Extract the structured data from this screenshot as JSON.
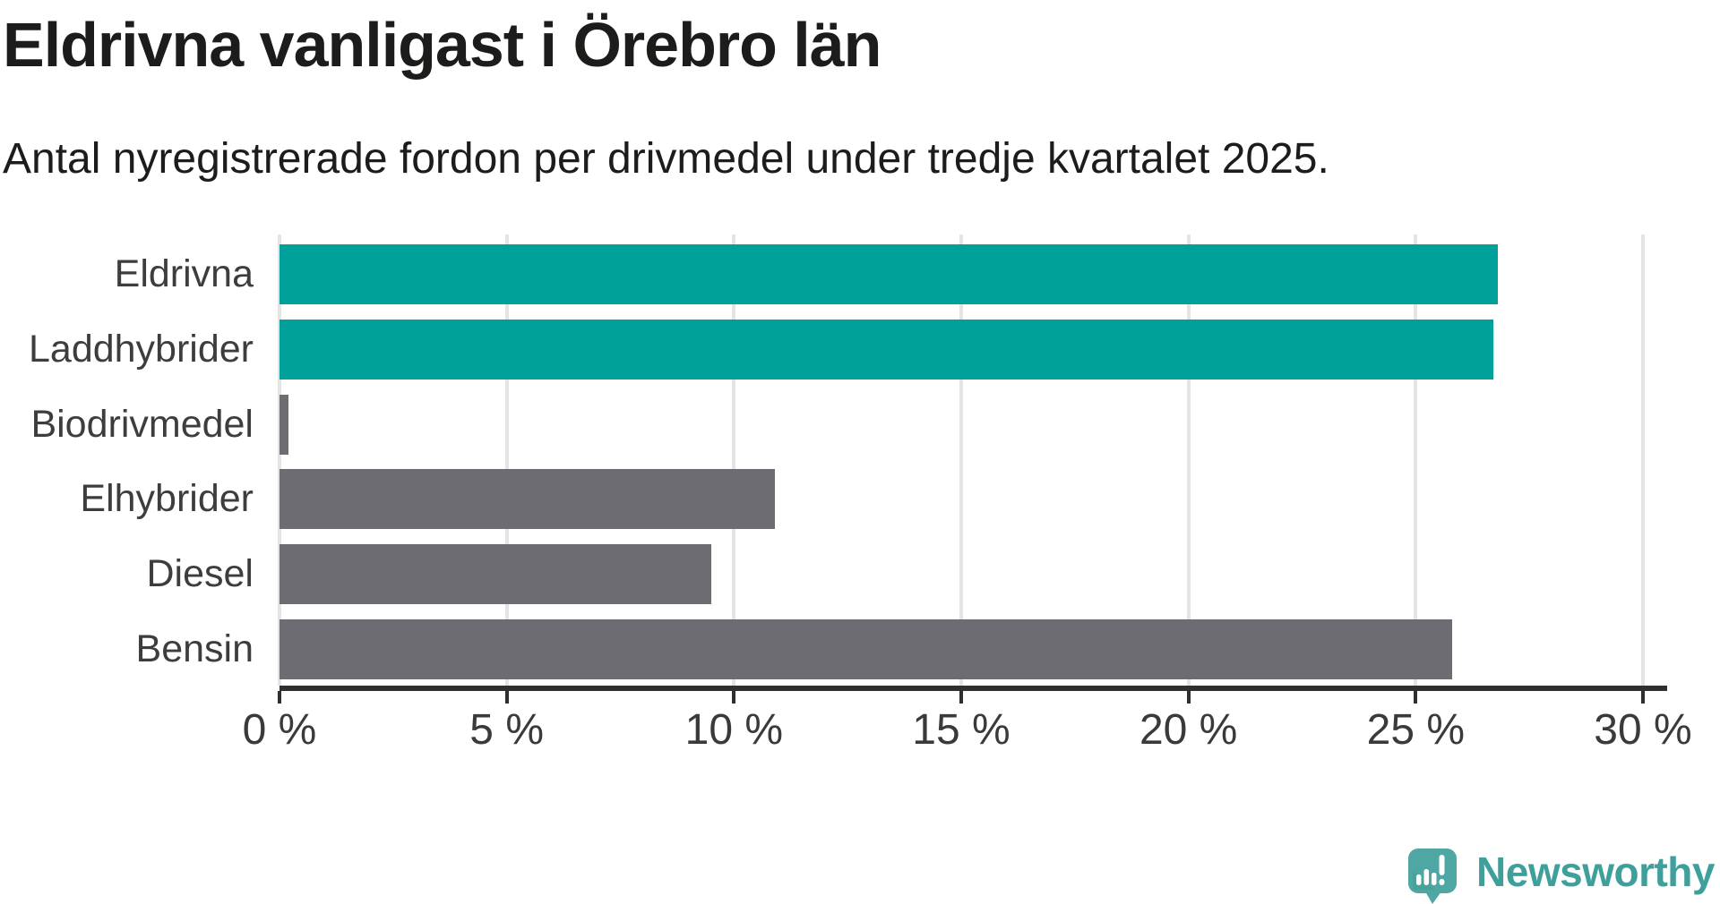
{
  "title": "Eldrivna vanligast i Örebro län",
  "subtitle": "Antal nyregistrerade fordon per drivmedel under tredje kvartalet 2025.",
  "chart_data": {
    "type": "bar",
    "orientation": "horizontal",
    "title": "Eldrivna vanligast i Örebro län",
    "subtitle": "Antal nyregistrerade fordon per drivmedel under tredje kvartalet 2025.",
    "categories": [
      "Eldrivna",
      "Laddhybrider",
      "Biodrivmedel",
      "Elhybrider",
      "Diesel",
      "Bensin"
    ],
    "values": [
      26.8,
      26.7,
      0.2,
      10.9,
      9.5,
      25.8
    ],
    "unit": "%",
    "xlim": [
      0,
      30
    ],
    "x_ticks": [
      0,
      5,
      10,
      15,
      20,
      25,
      30
    ],
    "x_tick_labels": [
      "0 %",
      "5 %",
      "10 %",
      "15 %",
      "20 %",
      "25 %",
      "30 %"
    ],
    "xlabel": "",
    "ylabel": "",
    "grid": true,
    "legend": "none",
    "bar_colors": [
      "#00a19a",
      "#00a19a",
      "#6c6c72",
      "#6c6c72",
      "#6c6c72",
      "#6c6c72"
    ],
    "colors": {
      "highlight": "#00a19a",
      "default_bar": "#6c6c72",
      "gridline": "#e4e4e4",
      "axis": "#2f2f2f",
      "tick_label": "#3a3a3a",
      "category_label": "#3d3d3d"
    }
  },
  "branding": {
    "logo_text": "Newsworthy",
    "logo_color": "#3fa09b",
    "icon_color": "#4fa7a3",
    "icon_shadow_color": "#459995",
    "icon_mark_color": "#ffffff"
  }
}
